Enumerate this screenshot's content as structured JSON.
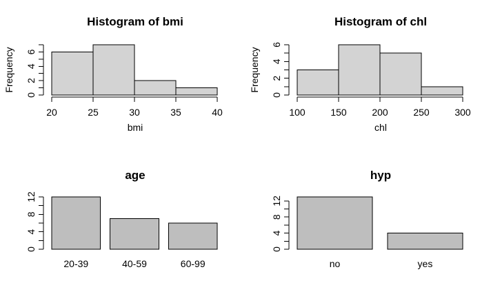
{
  "window": {
    "background": "#ffffff"
  },
  "colors": {
    "histogram_fill": "#d3d3d3",
    "barplot_fill": "#bebebe",
    "axis": "#000000",
    "text": "#000000"
  },
  "chart_data": [
    {
      "type": "bar",
      "kind": "histogram",
      "title": "Histogram of bmi",
      "xlabel": "bmi",
      "ylabel": "Frequency",
      "breaks": [
        20,
        25,
        30,
        35,
        40
      ],
      "counts": [
        6,
        7,
        2,
        1
      ],
      "xtick_labels": [
        "20",
        "25",
        "30",
        "35",
        "40"
      ],
      "ylim": [
        0,
        7
      ],
      "ytick_step": 1,
      "ytick_max": 7,
      "ytick_labels": [
        0,
        2,
        4,
        6
      ],
      "grid": false,
      "legend": "none",
      "fill": "#d3d3d3"
    },
    {
      "type": "bar",
      "kind": "histogram",
      "title": "Histogram of chl",
      "xlabel": "chl",
      "ylabel": "Frequency",
      "breaks": [
        100,
        150,
        200,
        250,
        300
      ],
      "counts": [
        3,
        6,
        5,
        1
      ],
      "xtick_labels": [
        "100",
        "150",
        "200",
        "250",
        "300"
      ],
      "ylim": [
        0,
        6
      ],
      "ytick_step": 1,
      "ytick_max": 6,
      "ytick_labels": [
        0,
        2,
        4,
        6
      ],
      "grid": false,
      "legend": "none",
      "fill": "#d3d3d3"
    },
    {
      "type": "bar",
      "kind": "barplot",
      "title": "age",
      "categories": [
        "20-39",
        "40-59",
        "60-99"
      ],
      "values": [
        12,
        7,
        6
      ],
      "ylim": [
        0,
        12
      ],
      "ytick_step": 2,
      "ytick_max": 12,
      "ytick_labels": [
        0,
        4,
        8,
        12
      ],
      "grid": false,
      "legend": "none",
      "fill": "#bebebe"
    },
    {
      "type": "bar",
      "kind": "barplot",
      "title": "hyp",
      "categories": [
        "no",
        "yes"
      ],
      "values": [
        13,
        4
      ],
      "ylim": [
        0,
        13
      ],
      "ytick_step": 2,
      "ytick_max": 12,
      "ytick_labels": [
        0,
        4,
        8,
        12
      ],
      "grid": false,
      "legend": "none",
      "fill": "#bebebe"
    }
  ]
}
